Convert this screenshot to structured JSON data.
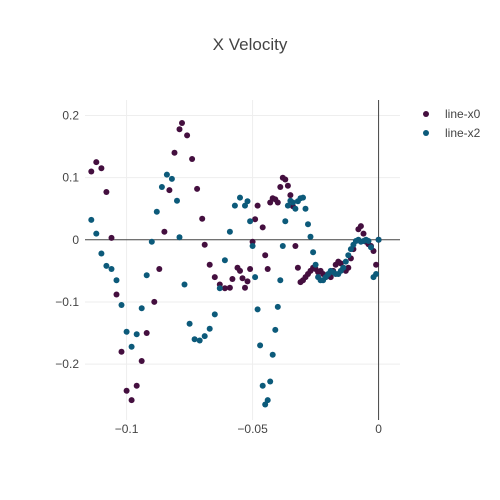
{
  "chart_data": {
    "type": "scatter",
    "title": "X Velocity",
    "xlabel": "",
    "ylabel": "",
    "xlim": [
      -0.1165,
      0.0085
    ],
    "ylim": [
      -0.29,
      0.225
    ],
    "x_ticks": [
      -0.1,
      -0.05,
      0
    ],
    "x_tick_labels": [
      "−0.1",
      "−0.05",
      "0"
    ],
    "y_ticks": [
      -0.2,
      -0.1,
      0,
      0.1,
      0.2
    ],
    "y_tick_labels": [
      "−0.2",
      "−0.1",
      "0",
      "0.1",
      "0.2"
    ],
    "grid": true,
    "legend_position": "top-right",
    "series": [
      {
        "name": "line-x0",
        "color": "#440f3f",
        "points": [
          [
            -0.114,
            0.11
          ],
          [
            -0.112,
            0.125
          ],
          [
            -0.11,
            0.115
          ],
          [
            -0.108,
            0.077
          ],
          [
            -0.106,
            0.003
          ],
          [
            -0.104,
            -0.088
          ],
          [
            -0.102,
            -0.18
          ],
          [
            -0.1,
            -0.243
          ],
          [
            -0.098,
            -0.258
          ],
          [
            -0.096,
            -0.235
          ],
          [
            -0.094,
            -0.195
          ],
          [
            -0.092,
            -0.15
          ],
          [
            -0.089,
            -0.1
          ],
          [
            -0.087,
            -0.047
          ],
          [
            -0.085,
            0.013
          ],
          [
            -0.083,
            0.08
          ],
          [
            -0.081,
            0.14
          ],
          [
            -0.079,
            0.178
          ],
          [
            -0.078,
            0.188
          ],
          [
            -0.076,
            0.168
          ],
          [
            -0.074,
            0.13
          ],
          [
            -0.072,
            0.082
          ],
          [
            -0.07,
            0.034
          ],
          [
            -0.069,
            -0.008
          ],
          [
            -0.067,
            -0.04
          ],
          [
            -0.065,
            -0.06
          ],
          [
            -0.063,
            -0.072
          ],
          [
            -0.061,
            -0.078
          ],
          [
            -0.059,
            -0.077
          ],
          [
            -0.058,
            -0.063
          ],
          [
            -0.056,
            -0.045
          ],
          [
            -0.055,
            -0.05
          ],
          [
            -0.054,
            -0.062
          ],
          [
            -0.053,
            -0.077
          ],
          [
            -0.052,
            -0.067
          ],
          [
            -0.051,
            -0.047
          ],
          [
            -0.05,
            -0.003
          ],
          [
            -0.049,
            0.033
          ],
          [
            -0.048,
            0.055
          ],
          [
            -0.046,
            0.02
          ],
          [
            -0.045,
            -0.025
          ],
          [
            -0.044,
            -0.047
          ],
          [
            -0.043,
            0.06
          ],
          [
            -0.042,
            0.067
          ],
          [
            -0.041,
            0.065
          ],
          [
            -0.04,
            0.06
          ],
          [
            -0.039,
            0.085
          ],
          [
            -0.038,
            0.1
          ],
          [
            -0.037,
            0.097
          ],
          [
            -0.036,
            0.087
          ],
          [
            -0.035,
            0.072
          ],
          [
            -0.034,
            0.054
          ],
          [
            -0.033,
            -0.01
          ],
          [
            -0.032,
            -0.045
          ],
          [
            -0.031,
            -0.068
          ],
          [
            -0.03,
            -0.065
          ],
          [
            -0.029,
            -0.06
          ],
          [
            -0.028,
            -0.055
          ],
          [
            -0.027,
            -0.05
          ],
          [
            -0.026,
            -0.045
          ],
          [
            -0.025,
            -0.047
          ],
          [
            -0.024,
            -0.052
          ],
          [
            -0.023,
            -0.05
          ],
          [
            -0.022,
            -0.055
          ],
          [
            -0.021,
            -0.06
          ],
          [
            -0.019,
            -0.06
          ],
          [
            -0.018,
            -0.05
          ],
          [
            -0.017,
            -0.04
          ],
          [
            -0.016,
            -0.035
          ],
          [
            -0.015,
            -0.038
          ],
          [
            -0.014,
            -0.045
          ],
          [
            -0.013,
            -0.05
          ],
          [
            -0.012,
            -0.045
          ],
          [
            -0.011,
            -0.03
          ],
          [
            -0.01,
            -0.015
          ],
          [
            -0.008,
            0.017
          ],
          [
            -0.007,
            0.022
          ],
          [
            -0.006,
            0.01
          ],
          [
            -0.005,
            -0.003
          ],
          [
            -0.004,
            -0.007
          ],
          [
            -0.003,
            -0.01
          ],
          [
            -0.002,
            -0.018
          ],
          [
            -0.001,
            -0.04
          ],
          [
            0.0,
            0.0
          ]
        ]
      },
      {
        "name": "line-x2",
        "color": "#0c5a7a",
        "points": [
          [
            -0.114,
            0.032
          ],
          [
            -0.112,
            0.01
          ],
          [
            -0.11,
            -0.022
          ],
          [
            -0.108,
            -0.042
          ],
          [
            -0.106,
            -0.047
          ],
          [
            -0.104,
            -0.065
          ],
          [
            -0.102,
            -0.105
          ],
          [
            -0.1,
            -0.148
          ],
          [
            -0.098,
            -0.172
          ],
          [
            -0.096,
            -0.152
          ],
          [
            -0.094,
            -0.11
          ],
          [
            -0.092,
            -0.057
          ],
          [
            -0.09,
            -0.003
          ],
          [
            -0.088,
            0.045
          ],
          [
            -0.086,
            0.085
          ],
          [
            -0.084,
            0.105
          ],
          [
            -0.082,
            0.098
          ],
          [
            -0.08,
            0.063
          ],
          [
            -0.079,
            0.004
          ],
          [
            -0.077,
            -0.072
          ],
          [
            -0.075,
            -0.135
          ],
          [
            -0.073,
            -0.16
          ],
          [
            -0.071,
            -0.162
          ],
          [
            -0.069,
            -0.155
          ],
          [
            -0.067,
            -0.143
          ],
          [
            -0.065,
            -0.12
          ],
          [
            -0.063,
            -0.078
          ],
          [
            -0.061,
            -0.033
          ],
          [
            -0.059,
            0.013
          ],
          [
            -0.057,
            0.055
          ],
          [
            -0.055,
            0.068
          ],
          [
            -0.053,
            0.055
          ],
          [
            -0.052,
            0.062
          ],
          [
            -0.051,
            0.03
          ],
          [
            -0.05,
            -0.01
          ],
          [
            -0.049,
            -0.06
          ],
          [
            -0.048,
            -0.112
          ],
          [
            -0.047,
            -0.17
          ],
          [
            -0.046,
            -0.235
          ],
          [
            -0.045,
            -0.265
          ],
          [
            -0.044,
            -0.258
          ],
          [
            -0.043,
            -0.228
          ],
          [
            -0.042,
            -0.185
          ],
          [
            -0.041,
            -0.145
          ],
          [
            -0.04,
            -0.108
          ],
          [
            -0.039,
            -0.065
          ],
          [
            -0.038,
            -0.01
          ],
          [
            -0.037,
            0.03
          ],
          [
            -0.036,
            0.055
          ],
          [
            -0.035,
            0.063
          ],
          [
            -0.034,
            0.06
          ],
          [
            -0.033,
            0.05
          ],
          [
            -0.032,
            0.062
          ],
          [
            -0.031,
            0.067
          ],
          [
            -0.03,
            0.068
          ],
          [
            -0.029,
            0.05
          ],
          [
            -0.028,
            0.025
          ],
          [
            -0.027,
            0.005
          ],
          [
            -0.026,
            -0.02
          ],
          [
            -0.025,
            -0.04
          ],
          [
            -0.024,
            -0.06
          ],
          [
            -0.023,
            -0.065
          ],
          [
            -0.022,
            -0.065
          ],
          [
            -0.021,
            -0.06
          ],
          [
            -0.02,
            -0.055
          ],
          [
            -0.019,
            -0.05
          ],
          [
            -0.018,
            -0.052
          ],
          [
            -0.017,
            -0.055
          ],
          [
            -0.016,
            -0.055
          ],
          [
            -0.015,
            -0.05
          ],
          [
            -0.014,
            -0.045
          ],
          [
            -0.013,
            -0.035
          ],
          [
            -0.012,
            -0.025
          ],
          [
            -0.011,
            -0.015
          ],
          [
            -0.01,
            -0.008
          ],
          [
            -0.009,
            -0.002
          ],
          [
            -0.008,
            0.0
          ],
          [
            -0.007,
            -0.003
          ],
          [
            -0.006,
            -0.002
          ],
          [
            -0.005,
            0.0
          ],
          [
            -0.004,
            -0.002
          ],
          [
            -0.003,
            -0.012
          ],
          [
            -0.002,
            -0.06
          ],
          [
            -0.001,
            -0.055
          ],
          [
            0.0,
            0.0
          ]
        ]
      }
    ]
  }
}
